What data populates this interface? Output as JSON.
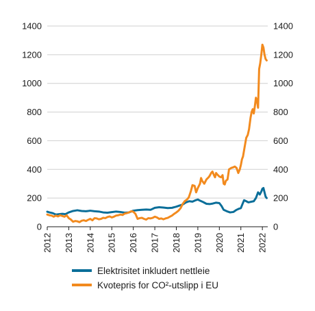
{
  "chart_data": {
    "type": "line",
    "title": "",
    "xlabel": "",
    "ylabel": "",
    "ylim": [
      0,
      1400
    ],
    "y_ticks": [
      0,
      200,
      400,
      600,
      800,
      1000,
      1200,
      1400
    ],
    "y_tick_labels": [
      "0",
      "200",
      "400",
      "600",
      "800",
      "1000",
      "1200",
      "1400"
    ],
    "y_axis_sides": [
      "left",
      "right"
    ],
    "xlim": [
      2012,
      2022.25
    ],
    "x_ticks": [
      2012,
      2013,
      2014,
      2015,
      2016,
      2017,
      2018,
      2019,
      2020,
      2021,
      2022
    ],
    "x_tick_labels": [
      "2012",
      "2013",
      "2014",
      "2015",
      "2016",
      "2017",
      "2018",
      "2019",
      "2020",
      "2021",
      "2022"
    ],
    "grid": "horizontal",
    "legend_placement": "bottom",
    "series": [
      {
        "name": "Elektrisitet inkludert nettleie",
        "color": "#0a6e99",
        "points": [
          [
            2012.0,
            105
          ],
          [
            2012.1,
            100
          ],
          [
            2012.25,
            95
          ],
          [
            2012.4,
            85
          ],
          [
            2012.55,
            88
          ],
          [
            2012.7,
            90
          ],
          [
            2012.85,
            88
          ],
          [
            2013.0,
            100
          ],
          [
            2013.2,
            110
          ],
          [
            2013.4,
            115
          ],
          [
            2013.6,
            110
          ],
          [
            2013.8,
            108
          ],
          [
            2014.0,
            112
          ],
          [
            2014.2,
            108
          ],
          [
            2014.4,
            106
          ],
          [
            2014.6,
            100
          ],
          [
            2014.8,
            98
          ],
          [
            2015.0,
            102
          ],
          [
            2015.2,
            106
          ],
          [
            2015.4,
            103
          ],
          [
            2015.6,
            98
          ],
          [
            2015.8,
            100
          ],
          [
            2016.0,
            112
          ],
          [
            2016.2,
            116
          ],
          [
            2016.4,
            118
          ],
          [
            2016.6,
            120
          ],
          [
            2016.8,
            118
          ],
          [
            2017.0,
            132
          ],
          [
            2017.2,
            136
          ],
          [
            2017.4,
            134
          ],
          [
            2017.6,
            130
          ],
          [
            2017.8,
            132
          ],
          [
            2018.0,
            140
          ],
          [
            2018.15,
            148
          ],
          [
            2018.3,
            155
          ],
          [
            2018.45,
            170
          ],
          [
            2018.6,
            178
          ],
          [
            2018.75,
            175
          ],
          [
            2018.9,
            185
          ],
          [
            2019.0,
            190
          ],
          [
            2019.1,
            182
          ],
          [
            2019.25,
            172
          ],
          [
            2019.4,
            160
          ],
          [
            2019.55,
            158
          ],
          [
            2019.7,
            162
          ],
          [
            2019.85,
            168
          ],
          [
            2020.0,
            165
          ],
          [
            2020.1,
            145
          ],
          [
            2020.2,
            118
          ],
          [
            2020.35,
            108
          ],
          [
            2020.5,
            100
          ],
          [
            2020.65,
            103
          ],
          [
            2020.8,
            118
          ],
          [
            2020.9,
            125
          ],
          [
            2021.0,
            130
          ],
          [
            2021.08,
            160
          ],
          [
            2021.15,
            185
          ],
          [
            2021.25,
            178
          ],
          [
            2021.35,
            170
          ],
          [
            2021.5,
            175
          ],
          [
            2021.6,
            178
          ],
          [
            2021.7,
            200
          ],
          [
            2021.8,
            240
          ],
          [
            2021.88,
            225
          ],
          [
            2021.95,
            245
          ],
          [
            2022.0,
            265
          ],
          [
            2022.05,
            270
          ],
          [
            2022.1,
            240
          ],
          [
            2022.15,
            210
          ],
          [
            2022.2,
            200
          ]
        ]
      },
      {
        "name": "Kvotepris for CO²-utslipp i EU",
        "color": "#f28a1e",
        "points": [
          [
            2012.0,
            85
          ],
          [
            2012.1,
            80
          ],
          [
            2012.2,
            78
          ],
          [
            2012.3,
            70
          ],
          [
            2012.4,
            78
          ],
          [
            2012.5,
            72
          ],
          [
            2012.6,
            80
          ],
          [
            2012.7,
            75
          ],
          [
            2012.8,
            70
          ],
          [
            2012.9,
            80
          ],
          [
            2013.0,
            60
          ],
          [
            2013.1,
            50
          ],
          [
            2013.2,
            35
          ],
          [
            2013.3,
            40
          ],
          [
            2013.4,
            38
          ],
          [
            2013.5,
            32
          ],
          [
            2013.6,
            42
          ],
          [
            2013.7,
            45
          ],
          [
            2013.8,
            40
          ],
          [
            2013.9,
            48
          ],
          [
            2014.0,
            55
          ],
          [
            2014.1,
            45
          ],
          [
            2014.2,
            60
          ],
          [
            2014.3,
            58
          ],
          [
            2014.4,
            52
          ],
          [
            2014.5,
            55
          ],
          [
            2014.6,
            62
          ],
          [
            2014.7,
            60
          ],
          [
            2014.8,
            68
          ],
          [
            2014.9,
            72
          ],
          [
            2015.0,
            65
          ],
          [
            2015.1,
            70
          ],
          [
            2015.2,
            78
          ],
          [
            2015.3,
            80
          ],
          [
            2015.4,
            85
          ],
          [
            2015.5,
            82
          ],
          [
            2015.6,
            92
          ],
          [
            2015.7,
            95
          ],
          [
            2015.8,
            100
          ],
          [
            2015.9,
            108
          ],
          [
            2016.0,
            105
          ],
          [
            2016.1,
            90
          ],
          [
            2016.2,
            55
          ],
          [
            2016.3,
            60
          ],
          [
            2016.4,
            62
          ],
          [
            2016.5,
            55
          ],
          [
            2016.6,
            50
          ],
          [
            2016.7,
            60
          ],
          [
            2016.8,
            58
          ],
          [
            2016.9,
            62
          ],
          [
            2017.0,
            70
          ],
          [
            2017.1,
            65
          ],
          [
            2017.2,
            55
          ],
          [
            2017.3,
            58
          ],
          [
            2017.4,
            52
          ],
          [
            2017.5,
            58
          ],
          [
            2017.6,
            62
          ],
          [
            2017.7,
            70
          ],
          [
            2017.8,
            78
          ],
          [
            2017.9,
            90
          ],
          [
            2018.0,
            100
          ],
          [
            2018.1,
            112
          ],
          [
            2018.2,
            130
          ],
          [
            2018.3,
            160
          ],
          [
            2018.4,
            180
          ],
          [
            2018.5,
            190
          ],
          [
            2018.58,
            205
          ],
          [
            2018.68,
            250
          ],
          [
            2018.75,
            290
          ],
          [
            2018.85,
            285
          ],
          [
            2018.92,
            240
          ],
          [
            2019.0,
            270
          ],
          [
            2019.1,
            300
          ],
          [
            2019.15,
            340
          ],
          [
            2019.2,
            320
          ],
          [
            2019.3,
            300
          ],
          [
            2019.4,
            330
          ],
          [
            2019.5,
            345
          ],
          [
            2019.55,
            355
          ],
          [
            2019.62,
            375
          ],
          [
            2019.68,
            385
          ],
          [
            2019.75,
            360
          ],
          [
            2019.8,
            345
          ],
          [
            2019.85,
            375
          ],
          [
            2019.9,
            365
          ],
          [
            2020.0,
            350
          ],
          [
            2020.08,
            345
          ],
          [
            2020.15,
            360
          ],
          [
            2020.2,
            300
          ],
          [
            2020.25,
            295
          ],
          [
            2020.3,
            320
          ],
          [
            2020.38,
            330
          ],
          [
            2020.45,
            400
          ],
          [
            2020.55,
            410
          ],
          [
            2020.65,
            415
          ],
          [
            2020.72,
            420
          ],
          [
            2020.8,
            410
          ],
          [
            2020.88,
            375
          ],
          [
            2020.95,
            400
          ],
          [
            2021.0,
            430
          ],
          [
            2021.05,
            470
          ],
          [
            2021.1,
            490
          ],
          [
            2021.18,
            560
          ],
          [
            2021.25,
            620
          ],
          [
            2021.32,
            640
          ],
          [
            2021.38,
            680
          ],
          [
            2021.45,
            760
          ],
          [
            2021.5,
            800
          ],
          [
            2021.55,
            820
          ],
          [
            2021.6,
            790
          ],
          [
            2021.65,
            840
          ],
          [
            2021.7,
            900
          ],
          [
            2021.75,
            880
          ],
          [
            2021.8,
            830
          ],
          [
            2021.85,
            1100
          ],
          [
            2021.9,
            1140
          ],
          [
            2021.95,
            1200
          ],
          [
            2022.0,
            1270
          ],
          [
            2022.05,
            1250
          ],
          [
            2022.1,
            1200
          ],
          [
            2022.15,
            1170
          ],
          [
            2022.2,
            1160
          ]
        ]
      }
    ]
  }
}
